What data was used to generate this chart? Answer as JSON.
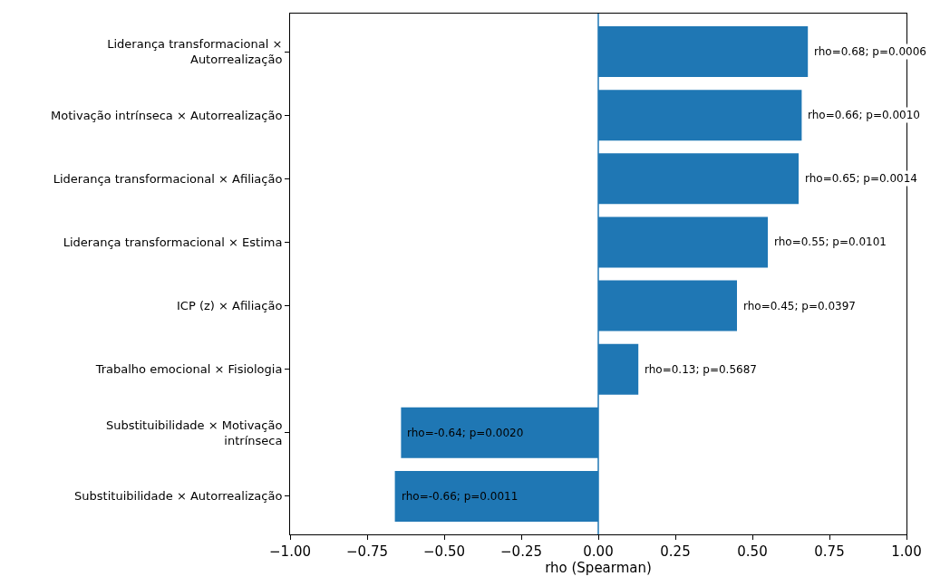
{
  "chart_data": {
    "type": "bar",
    "orientation": "horizontal",
    "xlabel": "rho (Spearman)",
    "categories": [
      "Liderança transformacional ×\nAutorrealização",
      "Motivação intrínseca × Autorrealização",
      "Liderança transformacional × Afiliação",
      "Liderança transformacional × Estima",
      "ICP (z) × Afiliação",
      "Trabalho emocional × Fisiologia",
      "Substituibilidade × Motivação\nintrínseca",
      "Substituibilidade × Autorrealização"
    ],
    "values": [
      0.68,
      0.66,
      0.65,
      0.55,
      0.45,
      0.13,
      -0.64,
      -0.66
    ],
    "value_labels": [
      "rho=0.68; p=0.0006",
      "rho=0.66; p=0.0010",
      "rho=0.65; p=0.0014",
      "rho=0.55; p=0.0101",
      "rho=0.45; p=0.0397",
      "rho=0.13; p=0.5687",
      "rho=-0.64; p=0.0020",
      "rho=-0.66; p=0.0011"
    ],
    "color": "#1f77b4",
    "xlim": [
      -1,
      1
    ],
    "xticks": [
      {
        "value": -1,
        "label": "−1.00"
      },
      {
        "value": -0.75,
        "label": "−0.75"
      },
      {
        "value": -0.5,
        "label": "−0.50"
      },
      {
        "value": -0.25,
        "label": "−0.25"
      },
      {
        "value": 0,
        "label": "0.00"
      },
      {
        "value": 0.25,
        "label": "0.25"
      },
      {
        "value": 0.5,
        "label": "0.50"
      },
      {
        "value": 0.75,
        "label": "0.75"
      },
      {
        "value": 1,
        "label": "1.00"
      }
    ],
    "ref_lines": [
      {
        "axis": "x",
        "value": 0,
        "color": "#1f77b4"
      }
    ],
    "grid": false
  }
}
